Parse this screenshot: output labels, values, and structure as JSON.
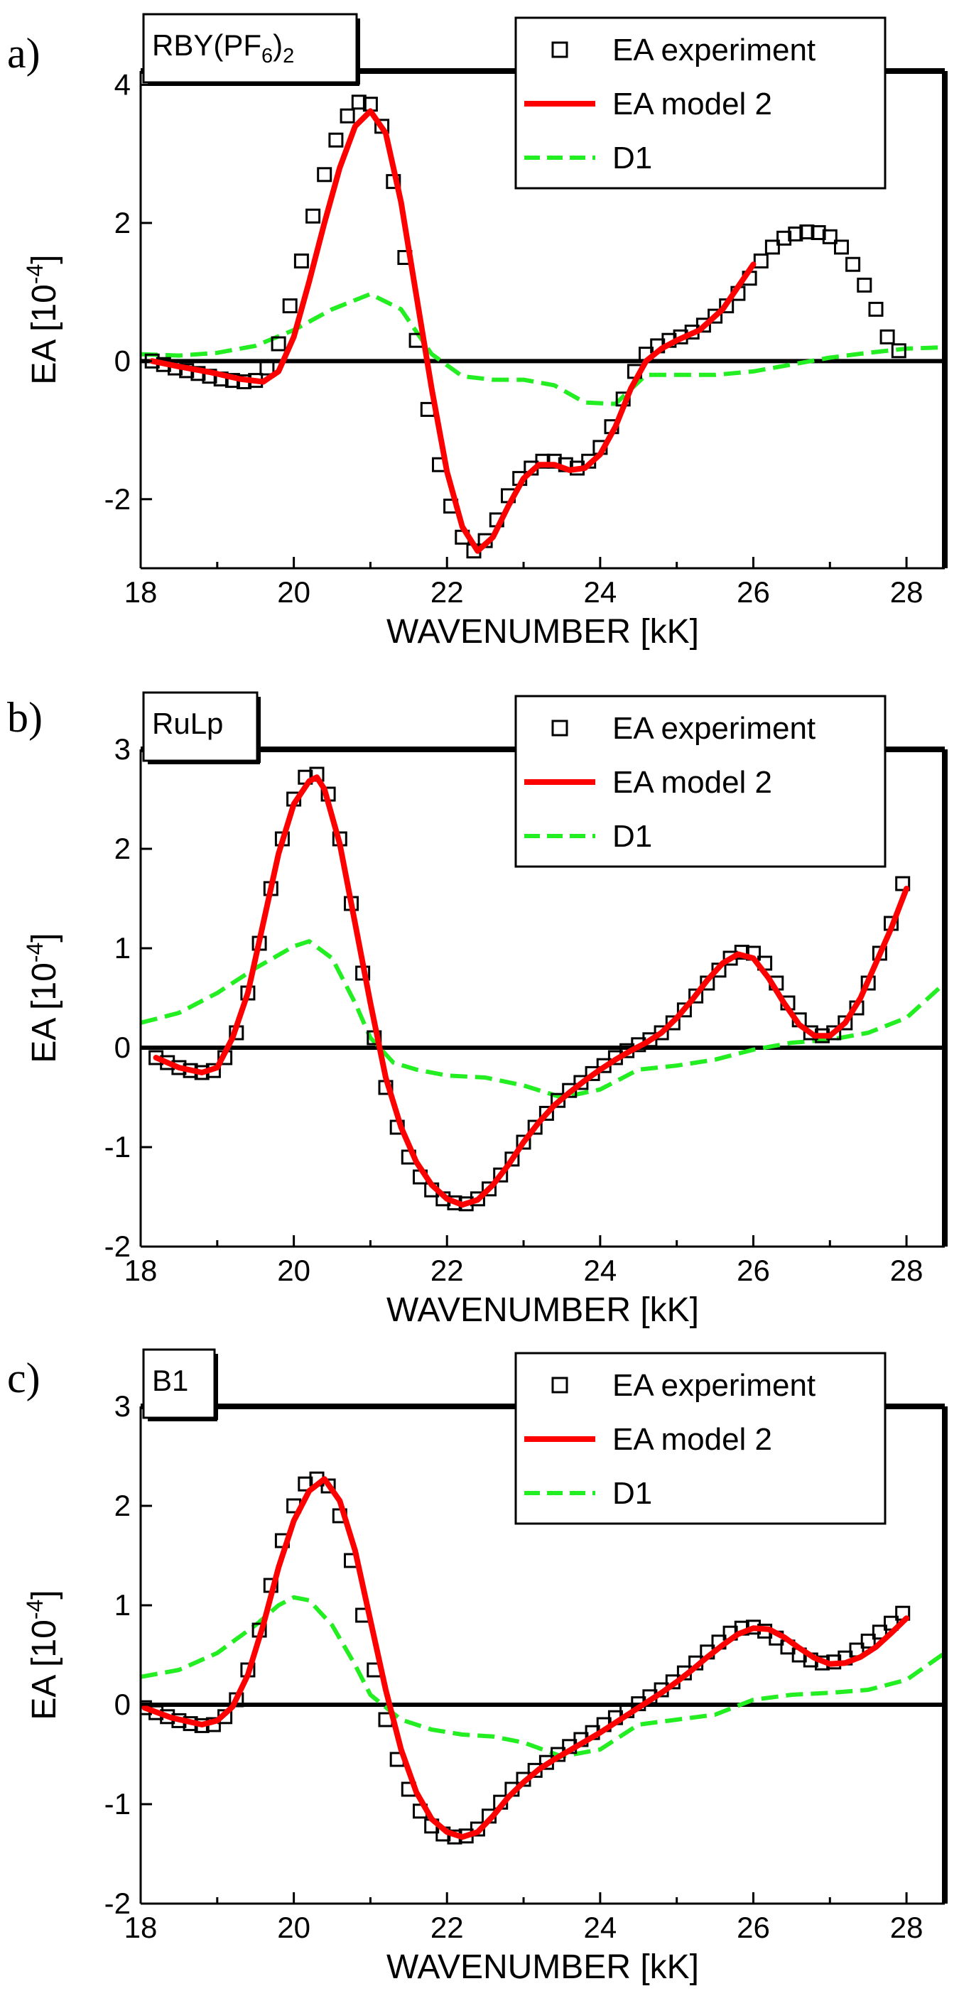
{
  "legend": {
    "experiment": "EA experiment",
    "model": "EA model 2",
    "d1": "D1"
  },
  "colors": {
    "experiment": "#000000",
    "model": "#ff0000",
    "d1": "#22ee22",
    "axis": "#000000"
  },
  "chart_data": [
    {
      "type": "line",
      "panel": "a)",
      "compound": {
        "base": "RBY(PF",
        "sub1": "6",
        "close": ")",
        "sub2": "2"
      },
      "xlabel": "WAVENUMBER [kK]",
      "ylabel": {
        "main": "EA [10",
        "sup": "-4",
        "close": "]"
      },
      "xlim": [
        18,
        28.5
      ],
      "ylim": [
        -3,
        4.2
      ],
      "xticks": [
        18,
        20,
        22,
        24,
        26,
        28
      ],
      "yticks": [
        -2,
        0,
        2,
        4
      ],
      "grid": false,
      "legend_position": "top-right",
      "series": [
        {
          "name": "EA experiment",
          "style": "squares",
          "x": [
            18.15,
            18.3,
            18.45,
            18.6,
            18.75,
            18.9,
            19.05,
            19.2,
            19.35,
            19.5,
            19.65,
            19.8,
            19.95,
            20.1,
            20.25,
            20.4,
            20.55,
            20.7,
            20.85,
            21.0,
            21.15,
            21.3,
            21.45,
            21.6,
            21.75,
            21.9,
            22.05,
            22.2,
            22.35,
            22.5,
            22.65,
            22.8,
            22.95,
            23.1,
            23.25,
            23.4,
            23.55,
            23.7,
            23.85,
            24.0,
            24.15,
            24.3,
            24.45,
            24.6,
            24.75,
            24.9,
            25.05,
            25.2,
            25.35,
            25.5,
            25.65,
            25.8,
            25.95,
            26.1,
            26.25,
            26.4,
            26.55,
            26.7,
            26.85,
            27.0,
            27.15,
            27.3,
            27.45,
            27.6,
            27.75,
            27.9
          ],
          "y": [
            0.0,
            -0.05,
            -0.1,
            -0.14,
            -0.18,
            -0.22,
            -0.26,
            -0.28,
            -0.3,
            -0.28,
            -0.1,
            0.25,
            0.8,
            1.45,
            2.1,
            2.7,
            3.2,
            3.55,
            3.75,
            3.72,
            3.4,
            2.6,
            1.5,
            0.3,
            -0.7,
            -1.5,
            -2.1,
            -2.55,
            -2.75,
            -2.6,
            -2.3,
            -1.95,
            -1.7,
            -1.55,
            -1.45,
            -1.45,
            -1.5,
            -1.55,
            -1.45,
            -1.25,
            -0.95,
            -0.55,
            -0.15,
            0.1,
            0.22,
            0.3,
            0.35,
            0.42,
            0.52,
            0.65,
            0.8,
            0.98,
            1.2,
            1.45,
            1.65,
            1.78,
            1.84,
            1.87,
            1.86,
            1.8,
            1.65,
            1.4,
            1.1,
            0.75,
            0.35,
            0.15
          ]
        },
        {
          "name": "EA model 2",
          "style": "solid",
          "x": [
            18.15,
            18.5,
            18.9,
            19.3,
            19.6,
            19.8,
            20.0,
            20.2,
            20.4,
            20.6,
            20.8,
            21.0,
            21.2,
            21.4,
            21.6,
            21.8,
            22.0,
            22.2,
            22.4,
            22.6,
            22.8,
            23.0,
            23.2,
            23.4,
            23.6,
            23.8,
            24.0,
            24.2,
            24.4,
            24.6,
            24.8,
            25.0,
            25.3,
            25.6,
            26.0
          ],
          "y": [
            0.0,
            -0.08,
            -0.16,
            -0.26,
            -0.3,
            -0.15,
            0.35,
            1.15,
            2.0,
            2.8,
            3.4,
            3.62,
            3.3,
            2.3,
            0.95,
            -0.4,
            -1.6,
            -2.4,
            -2.75,
            -2.55,
            -2.1,
            -1.7,
            -1.5,
            -1.5,
            -1.58,
            -1.55,
            -1.35,
            -0.95,
            -0.4,
            0.0,
            0.18,
            0.3,
            0.45,
            0.75,
            1.4
          ]
        },
        {
          "name": "D1",
          "style": "dashed",
          "x": [
            18.0,
            18.5,
            19.0,
            19.5,
            20.0,
            20.5,
            21.0,
            21.4,
            21.8,
            22.2,
            22.6,
            23.0,
            23.4,
            23.8,
            24.2,
            24.6,
            25.0,
            25.5,
            26.0,
            26.5,
            27.0,
            27.5,
            28.0,
            28.5
          ],
          "y": [
            0.1,
            0.08,
            0.12,
            0.22,
            0.45,
            0.75,
            0.97,
            0.75,
            0.1,
            -0.22,
            -0.27,
            -0.27,
            -0.35,
            -0.6,
            -0.62,
            -0.2,
            -0.2,
            -0.2,
            -0.15,
            -0.05,
            0.05,
            0.12,
            0.18,
            0.2
          ]
        }
      ]
    },
    {
      "type": "line",
      "panel": "b)",
      "compound": {
        "base": "RuLp"
      },
      "xlabel": "WAVENUMBER [kK]",
      "ylabel": {
        "main": "EA [10",
        "sup": "-4",
        "close": "]"
      },
      "xlim": [
        18,
        28.5
      ],
      "ylim": [
        -2,
        3
      ],
      "xticks": [
        18,
        20,
        22,
        24,
        26,
        28
      ],
      "yticks": [
        -2,
        -1,
        0,
        1,
        2,
        3
      ],
      "grid": false,
      "legend_position": "top-right",
      "series": [
        {
          "name": "EA experiment",
          "style": "squares",
          "x": [
            18.2,
            18.35,
            18.5,
            18.65,
            18.8,
            18.95,
            19.1,
            19.25,
            19.4,
            19.55,
            19.7,
            19.85,
            20.0,
            20.15,
            20.3,
            20.45,
            20.6,
            20.75,
            20.9,
            21.05,
            21.2,
            21.35,
            21.5,
            21.65,
            21.8,
            21.95,
            22.1,
            22.25,
            22.4,
            22.55,
            22.7,
            22.85,
            23.0,
            23.15,
            23.3,
            23.45,
            23.6,
            23.75,
            23.9,
            24.05,
            24.2,
            24.35,
            24.5,
            24.65,
            24.8,
            24.95,
            25.1,
            25.25,
            25.4,
            25.55,
            25.7,
            25.85,
            26.0,
            26.15,
            26.3,
            26.45,
            26.6,
            26.75,
            26.9,
            27.05,
            27.2,
            27.35,
            27.5,
            27.65,
            27.8,
            27.95
          ],
          "y": [
            -0.1,
            -0.15,
            -0.2,
            -0.23,
            -0.25,
            -0.23,
            -0.1,
            0.15,
            0.55,
            1.05,
            1.6,
            2.1,
            2.5,
            2.72,
            2.75,
            2.55,
            2.1,
            1.45,
            0.75,
            0.1,
            -0.4,
            -0.8,
            -1.1,
            -1.3,
            -1.43,
            -1.52,
            -1.56,
            -1.57,
            -1.52,
            -1.42,
            -1.28,
            -1.12,
            -0.95,
            -0.8,
            -0.66,
            -0.53,
            -0.43,
            -0.35,
            -0.26,
            -0.18,
            -0.1,
            -0.03,
            0.03,
            0.08,
            0.15,
            0.25,
            0.38,
            0.52,
            0.65,
            0.78,
            0.9,
            0.96,
            0.95,
            0.85,
            0.65,
            0.45,
            0.28,
            0.15,
            0.12,
            0.15,
            0.25,
            0.4,
            0.65,
            0.95,
            1.25,
            1.65
          ]
        },
        {
          "name": "EA model 2",
          "style": "solid",
          "x": [
            18.2,
            18.5,
            18.8,
            19.0,
            19.2,
            19.4,
            19.6,
            19.8,
            20.0,
            20.2,
            20.3,
            20.4,
            20.6,
            20.8,
            21.0,
            21.2,
            21.4,
            21.6,
            21.8,
            22.0,
            22.2,
            22.4,
            22.6,
            22.8,
            23.0,
            23.2,
            23.4,
            23.6,
            23.8,
            24.0,
            24.2,
            24.4,
            24.6,
            24.8,
            25.0,
            25.2,
            25.4,
            25.6,
            25.8,
            26.0,
            26.2,
            26.4,
            26.6,
            26.8,
            27.0,
            27.2,
            27.4,
            27.6,
            27.8,
            28.0
          ],
          "y": [
            -0.1,
            -0.2,
            -0.25,
            -0.2,
            0.1,
            0.55,
            1.25,
            1.95,
            2.45,
            2.68,
            2.72,
            2.6,
            2.05,
            1.25,
            0.45,
            -0.3,
            -0.8,
            -1.15,
            -1.38,
            -1.52,
            -1.58,
            -1.53,
            -1.38,
            -1.18,
            -0.95,
            -0.75,
            -0.58,
            -0.45,
            -0.33,
            -0.22,
            -0.12,
            -0.03,
            0.05,
            0.15,
            0.3,
            0.48,
            0.68,
            0.85,
            0.94,
            0.9,
            0.7,
            0.45,
            0.23,
            0.12,
            0.12,
            0.25,
            0.5,
            0.85,
            1.2,
            1.6
          ]
        },
        {
          "name": "D1",
          "style": "dashed",
          "x": [
            18.0,
            18.5,
            19.0,
            19.5,
            20.0,
            20.2,
            20.5,
            20.8,
            21.0,
            21.3,
            21.6,
            22.0,
            22.5,
            23.0,
            23.5,
            24.0,
            24.5,
            25.0,
            25.5,
            26.0,
            26.5,
            27.0,
            27.5,
            28.0,
            28.5
          ],
          "y": [
            0.25,
            0.35,
            0.55,
            0.8,
            1.02,
            1.07,
            0.9,
            0.45,
            0.1,
            -0.15,
            -0.22,
            -0.28,
            -0.3,
            -0.38,
            -0.5,
            -0.42,
            -0.22,
            -0.18,
            -0.12,
            -0.02,
            0.05,
            0.08,
            0.15,
            0.3,
            0.65
          ]
        }
      ]
    },
    {
      "type": "line",
      "panel": "c)",
      "compound": {
        "base": "B1"
      },
      "xlabel": "WAVENUMBER [kK]",
      "ylabel": {
        "main": "EA [10",
        "sup": "-4",
        "close": "]"
      },
      "xlim": [
        18,
        28.5
      ],
      "ylim": [
        -2,
        3
      ],
      "xticks": [
        18,
        20,
        22,
        24,
        26,
        28
      ],
      "yticks": [
        -2,
        -1,
        0,
        1,
        2,
        3
      ],
      "grid": false,
      "legend_position": "top-right",
      "series": [
        {
          "name": "EA experiment",
          "style": "squares",
          "x": [
            18.05,
            18.2,
            18.35,
            18.5,
            18.65,
            18.8,
            18.95,
            19.1,
            19.25,
            19.4,
            19.55,
            19.7,
            19.85,
            20.0,
            20.15,
            20.3,
            20.45,
            20.6,
            20.75,
            20.9,
            21.05,
            21.2,
            21.35,
            21.5,
            21.65,
            21.8,
            21.95,
            22.1,
            22.25,
            22.4,
            22.55,
            22.7,
            22.85,
            23.0,
            23.15,
            23.3,
            23.45,
            23.6,
            23.75,
            23.9,
            24.05,
            24.2,
            24.35,
            24.5,
            24.65,
            24.8,
            24.95,
            25.1,
            25.25,
            25.4,
            25.55,
            25.7,
            25.85,
            26.0,
            26.15,
            26.3,
            26.45,
            26.6,
            26.75,
            26.9,
            27.05,
            27.2,
            27.35,
            27.5,
            27.65,
            27.8,
            27.95
          ],
          "y": [
            -0.03,
            -0.08,
            -0.12,
            -0.16,
            -0.19,
            -0.21,
            -0.2,
            -0.12,
            0.05,
            0.35,
            0.75,
            1.2,
            1.65,
            2.0,
            2.22,
            2.27,
            2.2,
            1.9,
            1.45,
            0.9,
            0.35,
            -0.15,
            -0.55,
            -0.85,
            -1.07,
            -1.22,
            -1.3,
            -1.33,
            -1.32,
            -1.25,
            -1.12,
            -0.98,
            -0.85,
            -0.75,
            -0.66,
            -0.58,
            -0.5,
            -0.42,
            -0.35,
            -0.28,
            -0.2,
            -0.13,
            -0.06,
            0.01,
            0.08,
            0.15,
            0.23,
            0.32,
            0.42,
            0.53,
            0.63,
            0.72,
            0.77,
            0.78,
            0.74,
            0.67,
            0.58,
            0.5,
            0.45,
            0.42,
            0.43,
            0.47,
            0.55,
            0.64,
            0.73,
            0.82,
            0.92
          ]
        },
        {
          "name": "EA model 2",
          "style": "solid",
          "x": [
            18.05,
            18.4,
            18.8,
            19.0,
            19.2,
            19.4,
            19.6,
            19.8,
            20.0,
            20.2,
            20.4,
            20.6,
            20.8,
            21.0,
            21.2,
            21.4,
            21.6,
            21.8,
            22.0,
            22.2,
            22.4,
            22.6,
            22.8,
            23.0,
            23.2,
            23.4,
            23.6,
            23.8,
            24.0,
            24.2,
            24.4,
            24.6,
            24.8,
            25.0,
            25.2,
            25.4,
            25.6,
            25.8,
            26.0,
            26.2,
            26.4,
            26.6,
            26.8,
            27.0,
            27.2,
            27.4,
            27.6,
            27.8,
            28.0
          ],
          "y": [
            -0.03,
            -0.13,
            -0.2,
            -0.16,
            -0.02,
            0.3,
            0.8,
            1.38,
            1.85,
            2.15,
            2.27,
            2.05,
            1.55,
            0.85,
            0.15,
            -0.45,
            -0.88,
            -1.15,
            -1.28,
            -1.33,
            -1.28,
            -1.12,
            -0.93,
            -0.78,
            -0.65,
            -0.55,
            -0.46,
            -0.37,
            -0.28,
            -0.18,
            -0.08,
            0.02,
            0.12,
            0.23,
            0.35,
            0.48,
            0.6,
            0.71,
            0.77,
            0.76,
            0.68,
            0.57,
            0.47,
            0.41,
            0.42,
            0.48,
            0.58,
            0.72,
            0.87
          ]
        },
        {
          "name": "D1",
          "style": "dashed",
          "x": [
            18.0,
            18.5,
            19.0,
            19.5,
            19.8,
            20.0,
            20.2,
            20.5,
            20.8,
            21.0,
            21.4,
            21.8,
            22.2,
            22.6,
            23.0,
            23.5,
            24.0,
            24.5,
            25.0,
            25.5,
            26.0,
            26.5,
            27.0,
            27.5,
            28.0,
            28.5
          ],
          "y": [
            0.28,
            0.35,
            0.52,
            0.8,
            1.0,
            1.08,
            1.05,
            0.8,
            0.4,
            0.1,
            -0.15,
            -0.25,
            -0.3,
            -0.32,
            -0.38,
            -0.52,
            -0.45,
            -0.2,
            -0.15,
            -0.1,
            0.05,
            0.1,
            0.12,
            0.15,
            0.25,
            0.52
          ]
        }
      ]
    }
  ]
}
